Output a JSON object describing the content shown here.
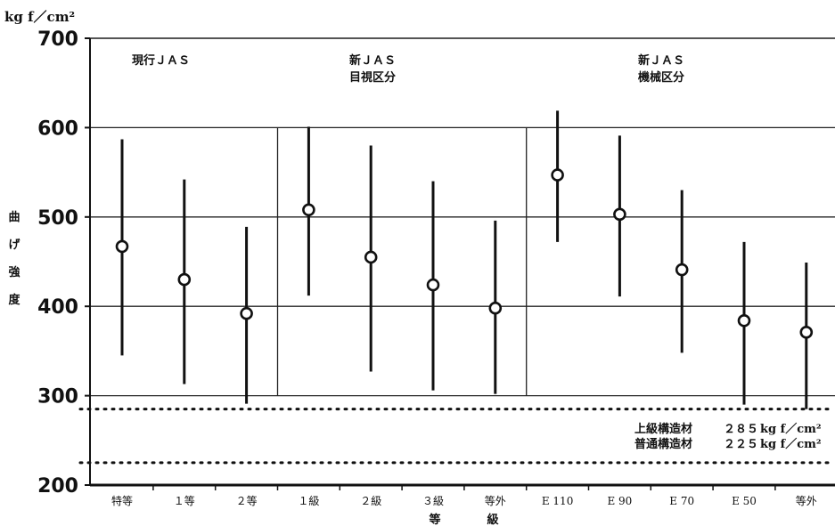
{
  "chart_data": {
    "type": "scatter",
    "unit": "kg f／cm²",
    "ylabel_chars": [
      "曲",
      "げ",
      "強",
      "度"
    ],
    "xlabel_chars": [
      "等",
      "級"
    ],
    "ylim": [
      200,
      700
    ],
    "yticks": [
      200,
      300,
      400,
      500,
      600,
      700
    ],
    "grid": true,
    "groups": [
      {
        "lines": [
          "現行ＪＡＳ"
        ]
      },
      {
        "lines": [
          "新ＪＡＳ",
          "目視区分"
        ]
      },
      {
        "lines": [
          "新ＪＡＳ",
          "機械区分"
        ]
      }
    ],
    "categories": [
      "特等",
      "１等",
      "２等",
      "１級",
      "２級",
      "３級",
      "等外",
      "E 110",
      "E 90",
      "E 70",
      "E 50",
      "等外"
    ],
    "points": [
      {
        "mean": 467,
        "low": 345,
        "high": 587
      },
      {
        "mean": 430,
        "low": 313,
        "high": 542
      },
      {
        "mean": 392,
        "low": 291,
        "high": 489
      },
      {
        "mean": 508,
        "low": 412,
        "high": 601
      },
      {
        "mean": 455,
        "low": 327,
        "high": 580
      },
      {
        "mean": 424,
        "low": 306,
        "high": 540
      },
      {
        "mean": 398,
        "low": 302,
        "high": 496
      },
      {
        "mean": 547,
        "low": 472,
        "high": 619
      },
      {
        "mean": 503,
        "low": 411,
        "high": 591
      },
      {
        "mean": 441,
        "low": 348,
        "high": 530
      },
      {
        "mean": 384,
        "low": 290,
        "high": 472
      },
      {
        "mean": 371,
        "low": 285,
        "high": 449
      }
    ],
    "reference_lines": [
      {
        "label": "上級構造材",
        "value": 285,
        "value_text": "２８５",
        "unit": "kg f／cm²"
      },
      {
        "label": "普通構造材",
        "value": 225,
        "value_text": "２２５",
        "unit": "kg f／cm²"
      }
    ]
  }
}
